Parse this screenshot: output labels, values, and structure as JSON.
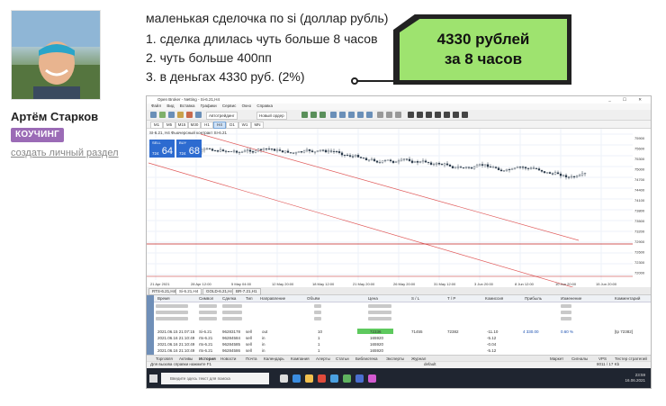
{
  "author": {
    "name": "Артём Старков",
    "badge": "КОУЧИНГ",
    "create_link": "создать личный раздел"
  },
  "post": {
    "title": "маленькая сделочка по si (доллар рубль)",
    "lines": [
      "1. сделка длилась чуть больше 8 часов",
      "2. чуть больше 400пп",
      "3. в деньгах 4330 руб. (2%)"
    ],
    "callout": {
      "line1": "4330 рублей",
      "line2": "за 8 часов",
      "bg_color": "#9ee36f"
    }
  },
  "terminal": {
    "window_title": "Open Broker - Netting - Si-6.21,H4",
    "window_buttons": "_ ☐ ✕",
    "menu": [
      "Файл",
      "Вид",
      "Вставка",
      "Графики",
      "Сервис",
      "Окно",
      "Справка"
    ],
    "toolbar": {
      "autotrade": "Автотрейдинг",
      "new_order": "Новый ордер"
    },
    "timeframes": [
      "M1",
      "M5",
      "M15",
      "M30",
      "H1",
      "H4",
      "D1",
      "W1",
      "MN"
    ],
    "active_timeframe": "H4",
    "chart_caption": "SI-6.21, H4   Фьючерсный контракт SI-6.21",
    "one_click": {
      "sell_label": "SELL",
      "buy_label": "BUY",
      "volume": "1.00",
      "sell_small": "724",
      "sell_big": "64",
      "buy_small": "724",
      "buy_big": "68"
    },
    "price_axis": [
      "75900",
      "75600",
      "75300",
      "75000",
      "74700",
      "74400",
      "74100",
      "73800",
      "73500",
      "73200",
      "72900",
      "72600",
      "72300",
      "72000"
    ],
    "time_axis": [
      "21 Apr 2021",
      "28 Apr 12:00",
      "5 May 04:00",
      "12 May 20:00",
      "18 May 12:00",
      "21 May 20:00",
      "26 May 20:00",
      "31 May 12:00",
      "3 Jun 20:00",
      "8 Jun 12:00",
      "10 Jun 20:00",
      "15 Jun 20:00"
    ],
    "chart_tabs": [
      "RTS-6.21,H4",
      "Si-6.21,H4",
      "GOLD-6.21,H4",
      "BR-7.21,H1"
    ],
    "active_chart_tab": "Si-6.21,H4",
    "table_headers": [
      "Время",
      "Символ",
      "Сделка",
      "Тип",
      "Направление",
      "Объём",
      "Цена",
      "S / L",
      "T / P",
      "Комиссия",
      "Прибыль",
      "Изменение",
      "Комментарий"
    ],
    "rows": [
      {
        "time": "2021.06.15 21:07:15",
        "symbol": "Si-6.21",
        "deal": "96283178",
        "type": "sell",
        "direction": "out",
        "volume": "10",
        "price": "72336",
        "sl": "71455",
        "tp": "72382",
        "commission": "-11.10",
        "profit": "4 330.00",
        "change": "0.60 %",
        "comment": "[tp 72382]"
      },
      {
        "time": "2021.06.16 21:10:49",
        "symbol": "rts-6.21",
        "deal": "96284584",
        "type": "sell",
        "direction": "in",
        "volume": "1",
        "price": "165920",
        "sl": "",
        "tp": "",
        "commission": "-5.12",
        "profit": "",
        "change": "",
        "comment": ""
      },
      {
        "time": "2021.06.16 21:10:49",
        "symbol": "rts-6.21",
        "deal": "96284585",
        "type": "sell",
        "direction": "in",
        "volume": "1",
        "price": "165920",
        "sl": "",
        "tp": "",
        "commission": "-0.04",
        "profit": "",
        "change": "",
        "comment": ""
      },
      {
        "time": "2021.06.16 21:10:49",
        "symbol": "rts-6.21",
        "deal": "96284586",
        "type": "sell",
        "direction": "in",
        "volume": "1",
        "price": "165920",
        "sl": "",
        "tp": "",
        "commission": "-5.12",
        "profit": "",
        "change": "",
        "comment": ""
      }
    ],
    "bottom_tabs": [
      "Торговля",
      "Активы",
      "История",
      "Новости",
      "Почта",
      "Календарь",
      "Компания",
      "Алерты",
      "Статьи",
      "Библиотека",
      "Эксперты",
      "Журнал"
    ],
    "bottom_right": [
      "Маркет",
      "Сигналы",
      "VPS",
      "Тестер стратегий"
    ],
    "status_left": "Для вызова справки нажмите F1",
    "status_mid": "default",
    "status_right": "8011 / 17 Kb",
    "taskbar_search": "Введите здесь текст для поиска",
    "tray_time": "23:59",
    "tray_date": "16.06.2021"
  }
}
